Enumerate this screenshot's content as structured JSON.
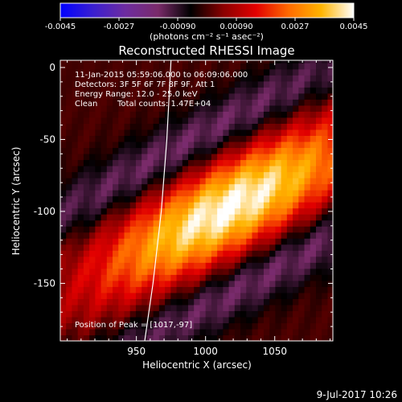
{
  "chart_data": {
    "type": "heatmap",
    "title": "Reconstructed RHESSI Image",
    "xlabel": "Heliocentric X (arcsec)",
    "ylabel": "Heliocentric Y (arcsec)",
    "xlim": [
      895,
      1092
    ],
    "ylim": [
      -190,
      5
    ],
    "x_ticks": [
      950,
      1000,
      1050
    ],
    "y_ticks": [
      0,
      -50,
      -100,
      -150
    ],
    "colorbar": {
      "range": [
        -0.0045,
        0.0045
      ],
      "tick_values": [
        -0.0045,
        -0.0027,
        -0.0009,
        0.0009,
        0.0027,
        0.0045
      ],
      "tick_labels": [
        "-0.0045",
        "-0.0027",
        "-0.00090",
        "0.00090",
        "0.0027",
        "0.0045"
      ],
      "unit_label": "(photons cm⁻² s⁻¹ asec⁻²)",
      "colors": [
        "#0000ff",
        "#3a1fd0",
        "#6e2ca0",
        "#7a2b6a",
        "#000000",
        "#8a0000",
        "#e20000",
        "#ff6a00",
        "#ffb400",
        "#ffffff"
      ]
    },
    "annotations": {
      "time_range": "11-Jan-2015 05:59:06.000 to 06:09:06.000",
      "detectors": "Detectors: 3F 5F 6F 7F 8F 9F, Att 1",
      "energy_range": "Energy Range: 12.0 - 25.0 keV",
      "clean": "Clean",
      "total_counts": "Total counts: 1.47E+04",
      "peak_position": "Position of Peak = [1017,-97]"
    },
    "peak": {
      "x": 1017,
      "y": -97
    },
    "limb_curve": [
      [
        956,
        -190
      ],
      [
        962,
        -150
      ],
      [
        968,
        -100
      ],
      [
        972,
        -50
      ],
      [
        975,
        5
      ]
    ]
  },
  "footer": {
    "date": "9-Jul-2017 10:26"
  }
}
